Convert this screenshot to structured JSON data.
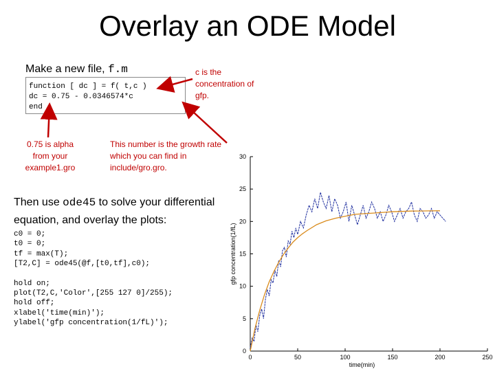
{
  "slide": {
    "title": "Overlay an ODE Model",
    "intro_text": "Make a new file, ",
    "intro_code": "f.m",
    "code_block": [
      "function [ dc ] = f( t,c )",
      "dc = 0.75 - 0.0346574*c",
      "end"
    ],
    "note_c": "c is the concentration of gfp.",
    "note_alpha": "0.75 is alpha from your example1.gro",
    "note_growth": "This number is the growth rate which you can find in include/gro.gro.",
    "then_prefix": "Then use ",
    "then_code": "ode45",
    "then_suffix": " to solve your differential equation, and overlay the plots:",
    "code_lines_1": [
      "c0 = 0;",
      "t0 = 0;",
      "tf = max(T);",
      "[T2,C] = ode45(@f,[t0,tf],c0);"
    ],
    "code_lines_2": [
      "hold on;",
      "plot(T2,C,'Color',[255 127 0]/255);",
      "hold off;",
      "xlabel('time(min)');",
      "ylabel('gfp concentration(1/fL)');"
    ]
  },
  "colors": {
    "annotation": "#c00000",
    "data_series": "#1f2f9f",
    "ode_series": "#d98b1c"
  },
  "chart_data": {
    "type": "line",
    "xlabel": "time(min)",
    "ylabel": "gfp concentration(1/fL)",
    "xlim": [
      0,
      250
    ],
    "ylim": [
      0,
      30
    ],
    "xticks": [
      0,
      50,
      100,
      150,
      200,
      250
    ],
    "yticks": [
      0,
      5,
      10,
      15,
      20,
      25,
      30
    ],
    "series": [
      {
        "x": [
          0,
          2,
          4,
          6,
          8,
          10,
          12,
          14,
          16,
          18,
          20,
          22,
          24,
          26,
          28,
          30,
          32,
          34,
          36,
          38,
          40,
          42,
          44,
          46,
          48,
          50,
          53,
          56,
          59,
          62,
          65,
          68,
          71,
          74,
          77,
          80,
          83,
          86,
          89,
          92,
          95,
          98,
          101,
          104,
          107,
          110,
          113,
          116,
          119,
          122,
          125,
          128,
          131,
          134,
          137,
          140,
          143,
          146,
          149,
          152,
          155,
          158,
          161,
          164,
          167,
          170,
          173,
          176,
          179,
          182,
          185,
          188,
          191,
          194,
          197,
          200,
          203,
          206
        ],
        "y": [
          0.5,
          2.0,
          1.5,
          4.0,
          3.0,
          5.5,
          6.5,
          5.0,
          8.0,
          9.5,
          8.5,
          11.0,
          10.5,
          12.5,
          11.5,
          14.0,
          13.0,
          15.5,
          16.0,
          14.5,
          17.0,
          16.5,
          18.5,
          17.5,
          19.0,
          18.0,
          20.0,
          19.0,
          21.0,
          22.5,
          21.5,
          23.5,
          22.0,
          24.5,
          23.0,
          22.0,
          24.0,
          21.5,
          23.5,
          22.5,
          20.5,
          21.5,
          23.0,
          20.0,
          22.5,
          21.0,
          19.5,
          21.0,
          22.5,
          20.5,
          21.5,
          23.0,
          22.0,
          20.5,
          21.5,
          20.0,
          21.0,
          22.5,
          21.5,
          20.0,
          21.0,
          22.0,
          20.5,
          21.5,
          22.0,
          23.0,
          21.0,
          20.0,
          22.0,
          21.5,
          20.5,
          21.0,
          22.0,
          20.5,
          21.5,
          21.0,
          20.5,
          20.0
        ]
      },
      {
        "x": [
          0,
          5,
          10,
          15,
          20,
          25,
          30,
          35,
          40,
          45,
          50,
          55,
          60,
          70,
          80,
          90,
          100,
          110,
          120,
          130,
          140,
          150,
          160,
          170,
          180,
          190,
          200
        ],
        "y": [
          0.0,
          3.5,
          6.3,
          8.7,
          10.7,
          12.3,
          13.7,
          14.9,
          15.9,
          16.8,
          17.5,
          18.1,
          18.6,
          19.5,
          20.1,
          20.5,
          20.8,
          21.1,
          21.2,
          21.3,
          21.4,
          21.5,
          21.55,
          21.6,
          21.62,
          21.64,
          21.65
        ]
      }
    ]
  }
}
